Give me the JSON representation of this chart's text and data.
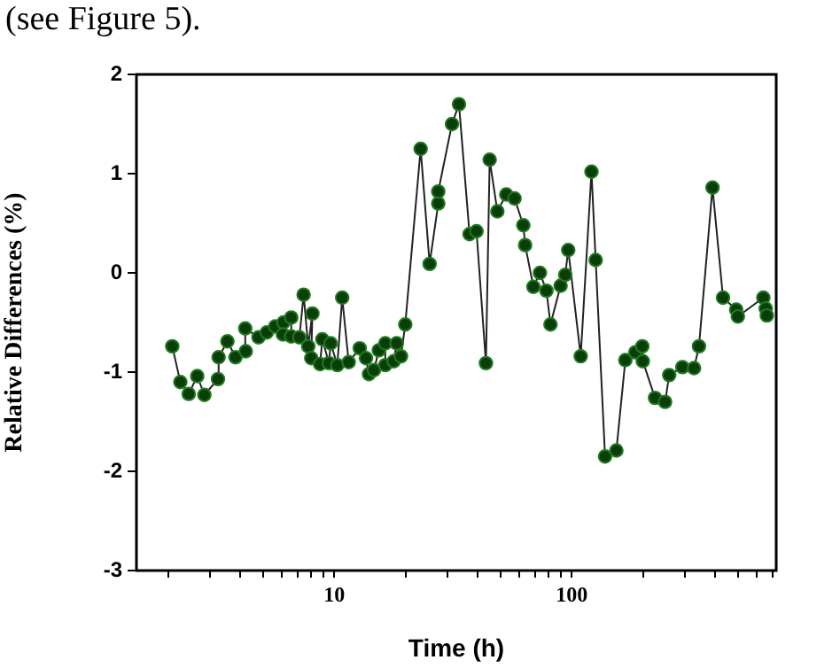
{
  "chart_data": {
    "type": "line",
    "xlabel": "Time (h)",
    "ylabel": "Relative Differences (%)",
    "annotations": [
      "(see Figure 5)."
    ],
    "log": "x",
    "grid": false,
    "marker": "circle",
    "line_style": "solid",
    "xlim": [
      1.47,
      725
    ],
    "ylim": [
      -3,
      2
    ],
    "xticks": [
      {
        "value": 2,
        "label": null
      },
      {
        "value": 3,
        "label": null
      },
      {
        "value": 4,
        "label": null
      },
      {
        "value": 5,
        "label": null
      },
      {
        "value": 6,
        "label": null
      },
      {
        "value": 7,
        "label": null
      },
      {
        "value": 8,
        "label": null
      },
      {
        "value": 9,
        "label": null
      },
      10,
      {
        "value": 20,
        "label": null
      },
      {
        "value": 30,
        "label": null
      },
      {
        "value": 40,
        "label": null
      },
      {
        "value": 50,
        "label": null
      },
      {
        "value": 60,
        "label": null
      },
      {
        "value": 70,
        "label": null
      },
      {
        "value": 80,
        "label": null
      },
      {
        "value": 90,
        "label": null
      },
      100,
      {
        "value": 200,
        "label": null
      },
      {
        "value": 300,
        "label": null
      },
      {
        "value": 400,
        "label": null
      },
      {
        "value": 500,
        "label": null
      },
      {
        "value": 600,
        "label": null
      },
      {
        "value": 700,
        "label": null
      }
    ],
    "yticks": [
      -3,
      -2,
      -1,
      0,
      1,
      2
    ],
    "series": [
      {
        "color": "#0b3d0b",
        "x": [
          2.08,
          2.25,
          2.44,
          2.65,
          2.84,
          3.24,
          3.26,
          3.55,
          3.84,
          4.24,
          4.22,
          4.8,
          5.2,
          5.64,
          6.11,
          6.08,
          6.59,
          6.59,
          7.13,
          7.43,
          7.77,
          8.09,
          8.0,
          8.71,
          8.91,
          9.5,
          9.66,
          10.3,
          10.8,
          11.5,
          12.8,
          13.6,
          14.0,
          14.7,
          15.4,
          16.4,
          16.4,
          17.8,
          18.3,
          19.1,
          19.9,
          23.1,
          25.2,
          27.4,
          27.4,
          31.3,
          33.5,
          37.1,
          39.7,
          43.5,
          45.1,
          48.6,
          53.0,
          57.4,
          62.5,
          63.6,
          68.9,
          73.4,
          78.2,
          81.3,
          89.7,
          93.8,
          96.6,
          109,
          121,
          126,
          138,
          154,
          168,
          185,
          198,
          199,
          224,
          247,
          257,
          292,
          327,
          343,
          391,
          433,
          492,
          500,
          640,
          655,
          662
        ],
        "values": [
          -0.74,
          -1.1,
          -1.22,
          -1.04,
          -1.23,
          -1.07,
          -0.85,
          -0.69,
          -0.85,
          -0.79,
          -0.56,
          -0.65,
          -0.6,
          -0.54,
          -0.5,
          -0.62,
          -0.45,
          -0.64,
          -0.65,
          -0.22,
          -0.74,
          -0.41,
          -0.86,
          -0.92,
          -0.67,
          -0.91,
          -0.71,
          -0.93,
          -0.25,
          -0.9,
          -0.76,
          -0.86,
          -1.02,
          -0.98,
          -0.78,
          -0.71,
          -0.93,
          -0.89,
          -0.71,
          -0.84,
          -0.52,
          1.25,
          0.09,
          0.7,
          0.82,
          1.5,
          1.7,
          0.39,
          0.42,
          -0.91,
          1.14,
          0.62,
          0.79,
          0.75,
          0.48,
          0.28,
          -0.14,
          0.0,
          -0.18,
          -0.52,
          -0.13,
          -0.02,
          0.23,
          -0.84,
          1.02,
          0.13,
          -1.85,
          -1.79,
          -0.88,
          -0.8,
          -0.74,
          -0.89,
          -1.26,
          -1.3,
          -1.03,
          -0.95,
          -0.96,
          -0.74,
          0.86,
          -0.25,
          -0.37,
          -0.44,
          -0.25,
          -0.36,
          -0.43
        ]
      }
    ]
  }
}
